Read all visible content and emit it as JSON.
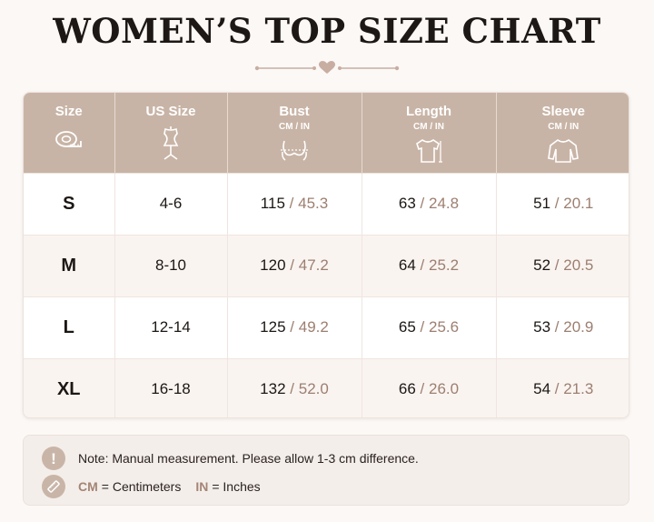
{
  "title": "WOMEN’S TOP SIZE CHART",
  "colors": {
    "header_bg": "#c8b4a6",
    "accent": "#9c7f70",
    "ornament": "#c8aea1"
  },
  "header": {
    "size": {
      "label": "Size",
      "icon": "tape-measure-icon"
    },
    "us_size": {
      "label": "US Size",
      "icon": "dress-form-icon"
    },
    "bust": {
      "label": "Bust",
      "unit": "CM / IN",
      "icon": "bust-icon"
    },
    "length": {
      "label": "Length",
      "unit": "CM / IN",
      "icon": "shirt-length-icon"
    },
    "sleeve": {
      "label": "Sleeve",
      "unit": "CM / IN",
      "icon": "sleeve-shirt-icon"
    }
  },
  "separator": "/",
  "rows": [
    {
      "size": "S",
      "us": "4-6",
      "bust_cm": "115",
      "bust_in": "45.3",
      "length_cm": "63",
      "length_in": "24.8",
      "sleeve_cm": "51",
      "sleeve_in": "20.1"
    },
    {
      "size": "M",
      "us": "8-10",
      "bust_cm": "120",
      "bust_in": "47.2",
      "length_cm": "64",
      "length_in": "25.2",
      "sleeve_cm": "52",
      "sleeve_in": "20.5"
    },
    {
      "size": "L",
      "us": "12-14",
      "bust_cm": "125",
      "bust_in": "49.2",
      "length_cm": "65",
      "length_in": "25.6",
      "sleeve_cm": "53",
      "sleeve_in": "20.9"
    },
    {
      "size": "XL",
      "us": "16-18",
      "bust_cm": "132",
      "bust_in": "52.0",
      "length_cm": "66",
      "length_in": "26.0",
      "sleeve_cm": "54",
      "sleeve_in": "21.3"
    }
  ],
  "note": {
    "warning_icon": "exclamation-icon",
    "warning_mark": "!",
    "text": "Note: Manual measurement. Please allow 1-3 cm difference.",
    "ruler_icon": "ruler-icon",
    "cm_abbr": "CM",
    "cm_def": "= Centimeters",
    "in_abbr": "IN",
    "in_def": "= Inches"
  }
}
